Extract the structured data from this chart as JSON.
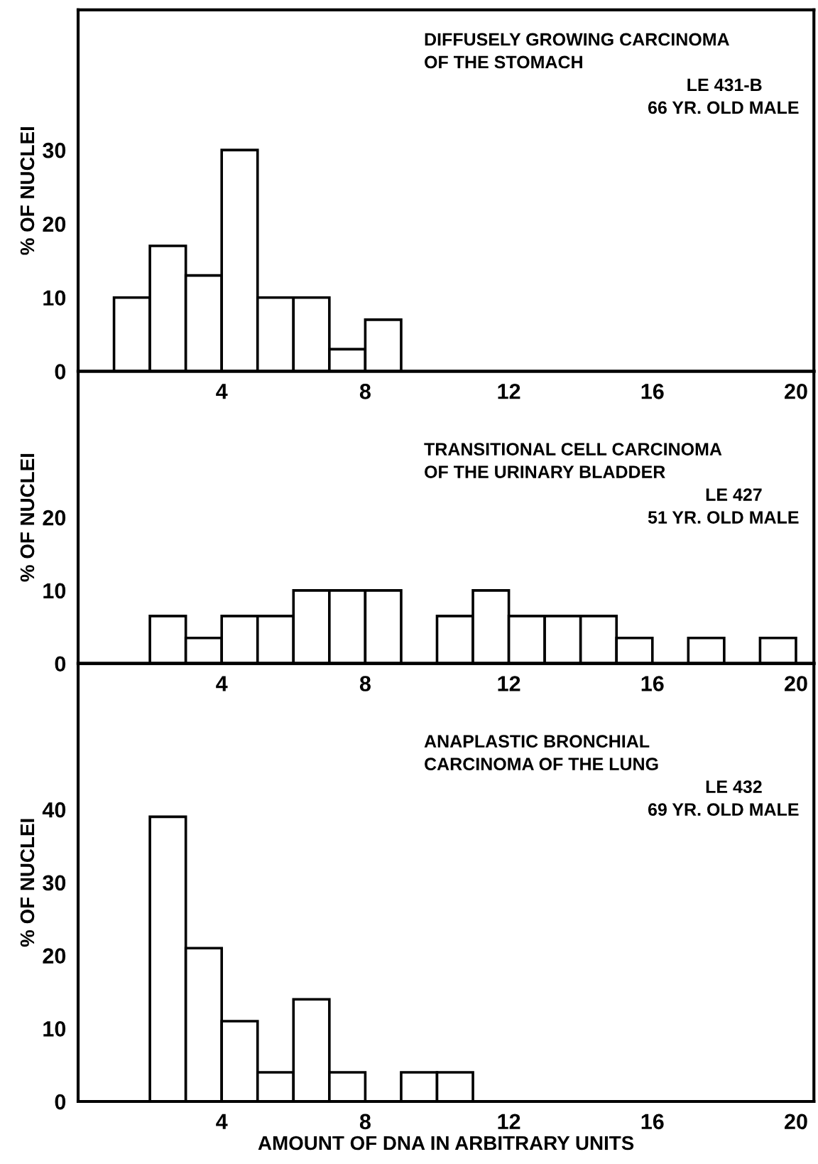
{
  "chart_data": [
    {
      "type": "histogram",
      "ylabel": "% OF NUCLEI",
      "bins": [
        1,
        2,
        3,
        4,
        5,
        6,
        7,
        8,
        9
      ],
      "values": [
        10,
        17,
        13,
        30,
        10,
        10,
        3,
        7
      ],
      "color": "#ffffff",
      "xlim": [
        0,
        20.5
      ],
      "xticks": [
        4,
        8,
        12,
        16,
        20
      ],
      "ylim": [
        0,
        49
      ],
      "yticks": [
        0,
        10,
        20,
        30
      ],
      "grid": false,
      "annotations": [
        "DIFFUSELY GROWING CARCINOMA",
        "OF THE STOMACH",
        "LE 431-B",
        "66 YR. OLD MALE"
      ]
    },
    {
      "type": "histogram",
      "ylabel": "% OF NUCLEI",
      "bins": [
        2,
        3,
        4,
        5,
        6,
        7,
        8,
        9,
        10,
        11,
        12,
        13,
        14,
        15,
        16,
        17,
        18,
        19,
        20
      ],
      "values": [
        6.5,
        3.5,
        6.5,
        6.5,
        10,
        10,
        10,
        0,
        6.5,
        10,
        6.5,
        6.5,
        6.5,
        3.5,
        0,
        3.5,
        0,
        3.5
      ],
      "color": "#ffffff",
      "xlim": [
        0,
        20.5
      ],
      "xticks": [
        4,
        8,
        12,
        16,
        20
      ],
      "ylim": [
        0,
        40
      ],
      "yticks": [
        0,
        10,
        20
      ],
      "grid": false,
      "annotations": [
        "TRANSITIONAL CELL CARCINOMA",
        "OF THE URINARY BLADDER",
        "LE 427",
        "51 YR. OLD MALE"
      ]
    },
    {
      "type": "histogram",
      "ylabel": "% OF NUCLEI",
      "xlabel": "AMOUNT OF DNA IN ARBITRARY UNITS",
      "bins": [
        2,
        3,
        4,
        5,
        6,
        7,
        8,
        9,
        10,
        11
      ],
      "values": [
        39,
        21,
        11,
        4,
        14,
        4,
        0,
        4,
        4
      ],
      "color": "#ffffff",
      "xlim": [
        0,
        20.5
      ],
      "xticks": [
        4,
        8,
        12,
        16,
        20
      ],
      "ylim": [
        0,
        60
      ],
      "yticks": [
        0,
        10,
        20,
        30,
        40
      ],
      "grid": false,
      "annotations": [
        "ANAPLASTIC BRONCHIAL",
        "CARCINOMA OF THE LUNG",
        "LE 432",
        "69 YR. OLD MALE"
      ]
    }
  ]
}
